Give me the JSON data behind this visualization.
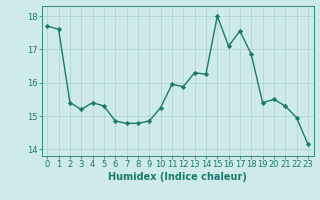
{
  "x": [
    0,
    1,
    2,
    3,
    4,
    5,
    6,
    7,
    8,
    9,
    10,
    11,
    12,
    13,
    14,
    15,
    16,
    17,
    18,
    19,
    20,
    21,
    22,
    23
  ],
  "y": [
    17.7,
    17.6,
    15.4,
    15.2,
    15.4,
    15.3,
    14.85,
    14.78,
    14.78,
    14.85,
    15.25,
    15.95,
    15.88,
    16.3,
    16.25,
    18.0,
    17.1,
    17.55,
    16.85,
    15.4,
    15.5,
    15.3,
    14.95,
    14.15
  ],
  "line_color": "#1a7a6e",
  "marker": "D",
  "marker_size": 2.2,
  "bg_color": "#ceeaea",
  "grid_color": "#aed0d0",
  "xlabel": "Humidex (Indice chaleur)",
  "xlim": [
    -0.5,
    23.5
  ],
  "ylim": [
    13.8,
    18.3
  ],
  "yticks": [
    14,
    15,
    16,
    17,
    18
  ],
  "xticks": [
    0,
    1,
    2,
    3,
    4,
    5,
    6,
    7,
    8,
    9,
    10,
    11,
    12,
    13,
    14,
    15,
    16,
    17,
    18,
    19,
    20,
    21,
    22,
    23
  ],
  "xtick_labels": [
    "0",
    "1",
    "2",
    "3",
    "4",
    "5",
    "6",
    "7",
    "8",
    "9",
    "10",
    "11",
    "12",
    "13",
    "14",
    "15",
    "16",
    "17",
    "18",
    "19",
    "20",
    "21",
    "22",
    "23"
  ],
  "tick_color": "#1a7a6e",
  "label_fontsize": 6,
  "xlabel_fontsize": 7,
  "line_width": 1.0
}
